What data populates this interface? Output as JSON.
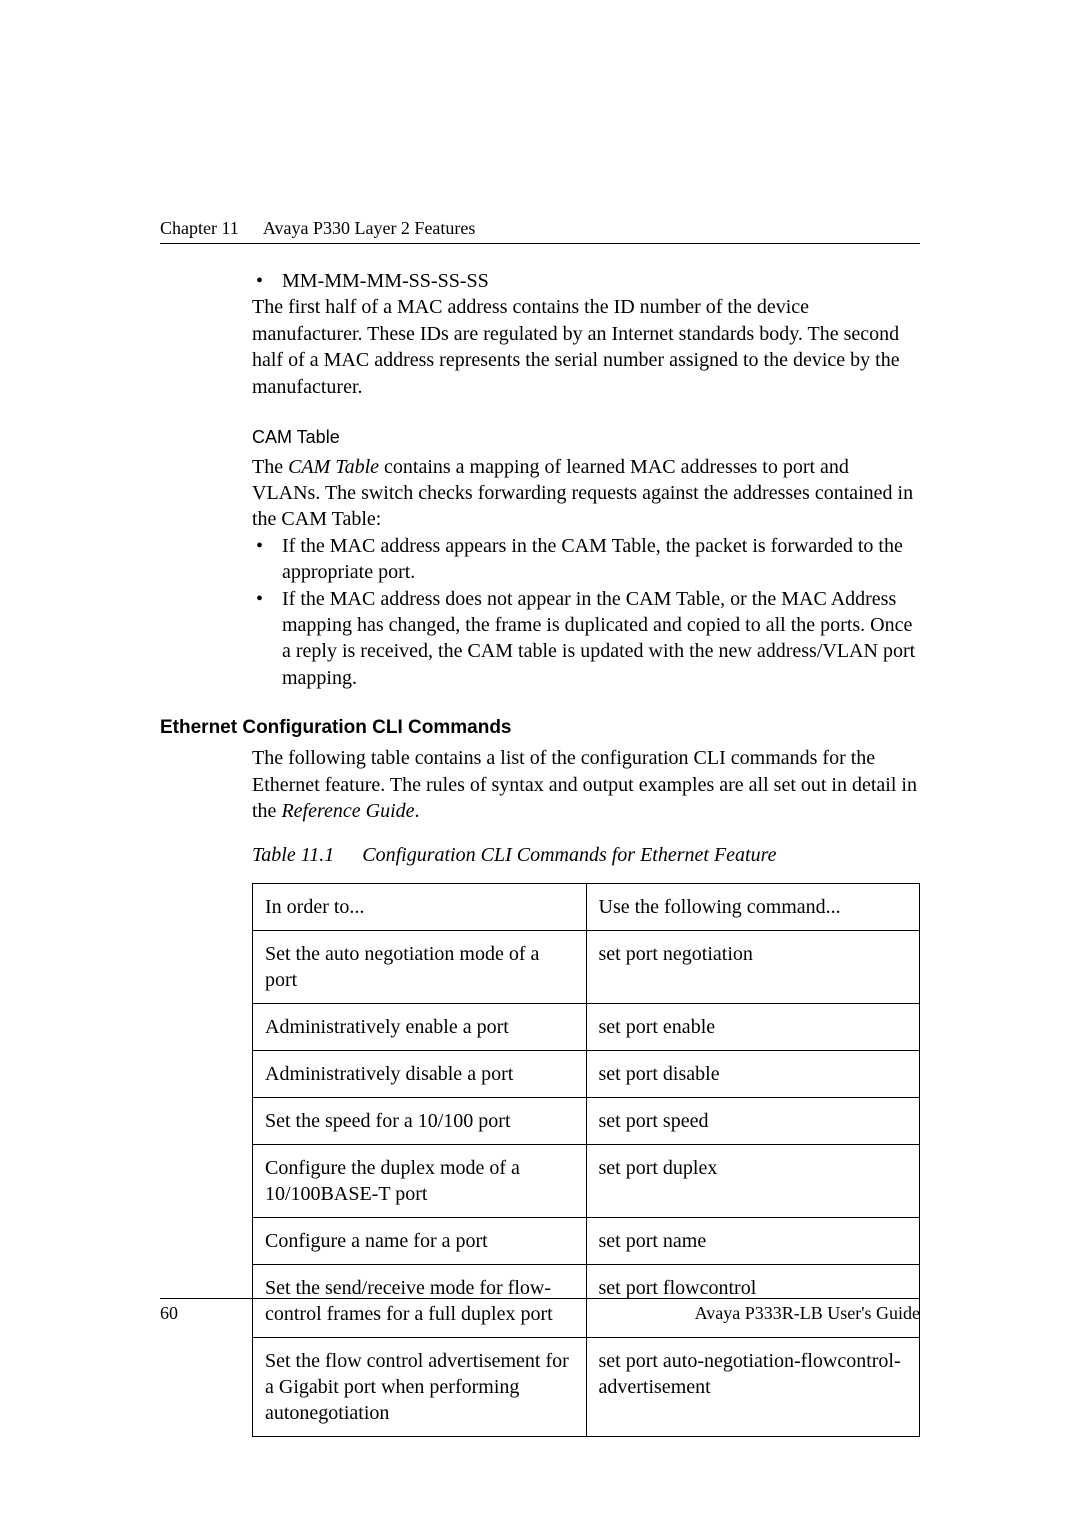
{
  "header": {
    "chapter": "Chapter 11",
    "title": "Avaya P330 Layer 2 Features"
  },
  "mac_section": {
    "bullet": "MM-MM-MM-SS-SS-SS",
    "para": "The first half of a MAC address contains the ID number of the device manufacturer. These IDs are regulated by an Internet standards body. The second half of a MAC address represents the serial number assigned to the device by the manufacturer."
  },
  "cam": {
    "heading": "CAM Table",
    "intro_pre": "The ",
    "intro_em": "CAM Table",
    "intro_post": " contains a mapping of learned MAC addresses to port and VLANs. The switch checks forwarding requests against the addresses contained in the CAM Table:",
    "bullets": [
      "If the MAC address appears in the CAM Table, the packet is forwarded to the appropriate port.",
      "If the MAC address does not appear in the CAM Table, or the MAC Address mapping has changed, the frame is duplicated and copied to all the ports. Once a reply is received, the CAM table is updated with the new address/VLAN port mapping."
    ]
  },
  "eth": {
    "heading": "Ethernet Configuration CLI Commands",
    "para_pre": "The following table contains a list of the configuration CLI commands for the Ethernet feature. The rules of syntax and output examples are all set out in detail in the ",
    "para_em": "Reference Guide",
    "para_post": "."
  },
  "table": {
    "caption_num": "Table 11.1",
    "caption_text": "Configuration CLI Commands for Ethernet Feature",
    "head_left": "In order to...",
    "head_right": "Use the following command...",
    "rows": [
      {
        "left": "Set the auto negotiation mode of a port",
        "right": "set port negotiation"
      },
      {
        "left": "Administratively enable a port",
        "right": "set port enable"
      },
      {
        "left": "Administratively disable a port",
        "right": "set port disable"
      },
      {
        "left": "Set the speed for a 10/100 port",
        "right": "set port speed"
      },
      {
        "left": "Configure the duplex mode of a 10/100BASE-T port",
        "right": "set port duplex"
      },
      {
        "left": "Configure a name for a port",
        "right": "set port name"
      },
      {
        "left": "Set the send/receive mode for flow-control frames for a full duplex port",
        "right": "set port flowcontrol"
      },
      {
        "left": "Set the flow control advertisement for a Gigabit port when performing autonegotiation",
        "right": "set port auto-negotiation-flowcontrol-advertisement"
      }
    ]
  },
  "footer": {
    "page": "60",
    "doc": "Avaya P333R-LB User's Guide"
  }
}
